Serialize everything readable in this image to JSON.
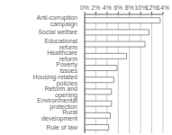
{
  "chart_data": {
    "type": "bar",
    "orientation": "horizontal",
    "categories": [
      "Anti-corruption campaign",
      "Social welfare",
      "Educational reform",
      "Healthcare reform",
      "Poverty issues",
      "Housing-related policies",
      "Reform and opening",
      "Environmental protection",
      "Rural development",
      "Rule of law"
    ],
    "values": [
      13.5,
      11.5,
      10.8,
      7.5,
      5.8,
      5.2,
      4.8,
      4.8,
      4.6,
      4.3
    ],
    "color": "#ffffff",
    "xlim": [
      0,
      14
    ],
    "xticks": [
      {
        "value": 0,
        "label": "0%"
      },
      {
        "value": 2,
        "label": "2%"
      },
      {
        "value": 4,
        "label": "4%"
      },
      {
        "value": 6,
        "label": "6%"
      },
      {
        "value": 8,
        "label": "8%"
      },
      {
        "value": 10,
        "label": "10%"
      },
      {
        "value": 12,
        "label": "12%"
      },
      {
        "value": 14,
        "label": "14%"
      }
    ],
    "grid": true
  }
}
